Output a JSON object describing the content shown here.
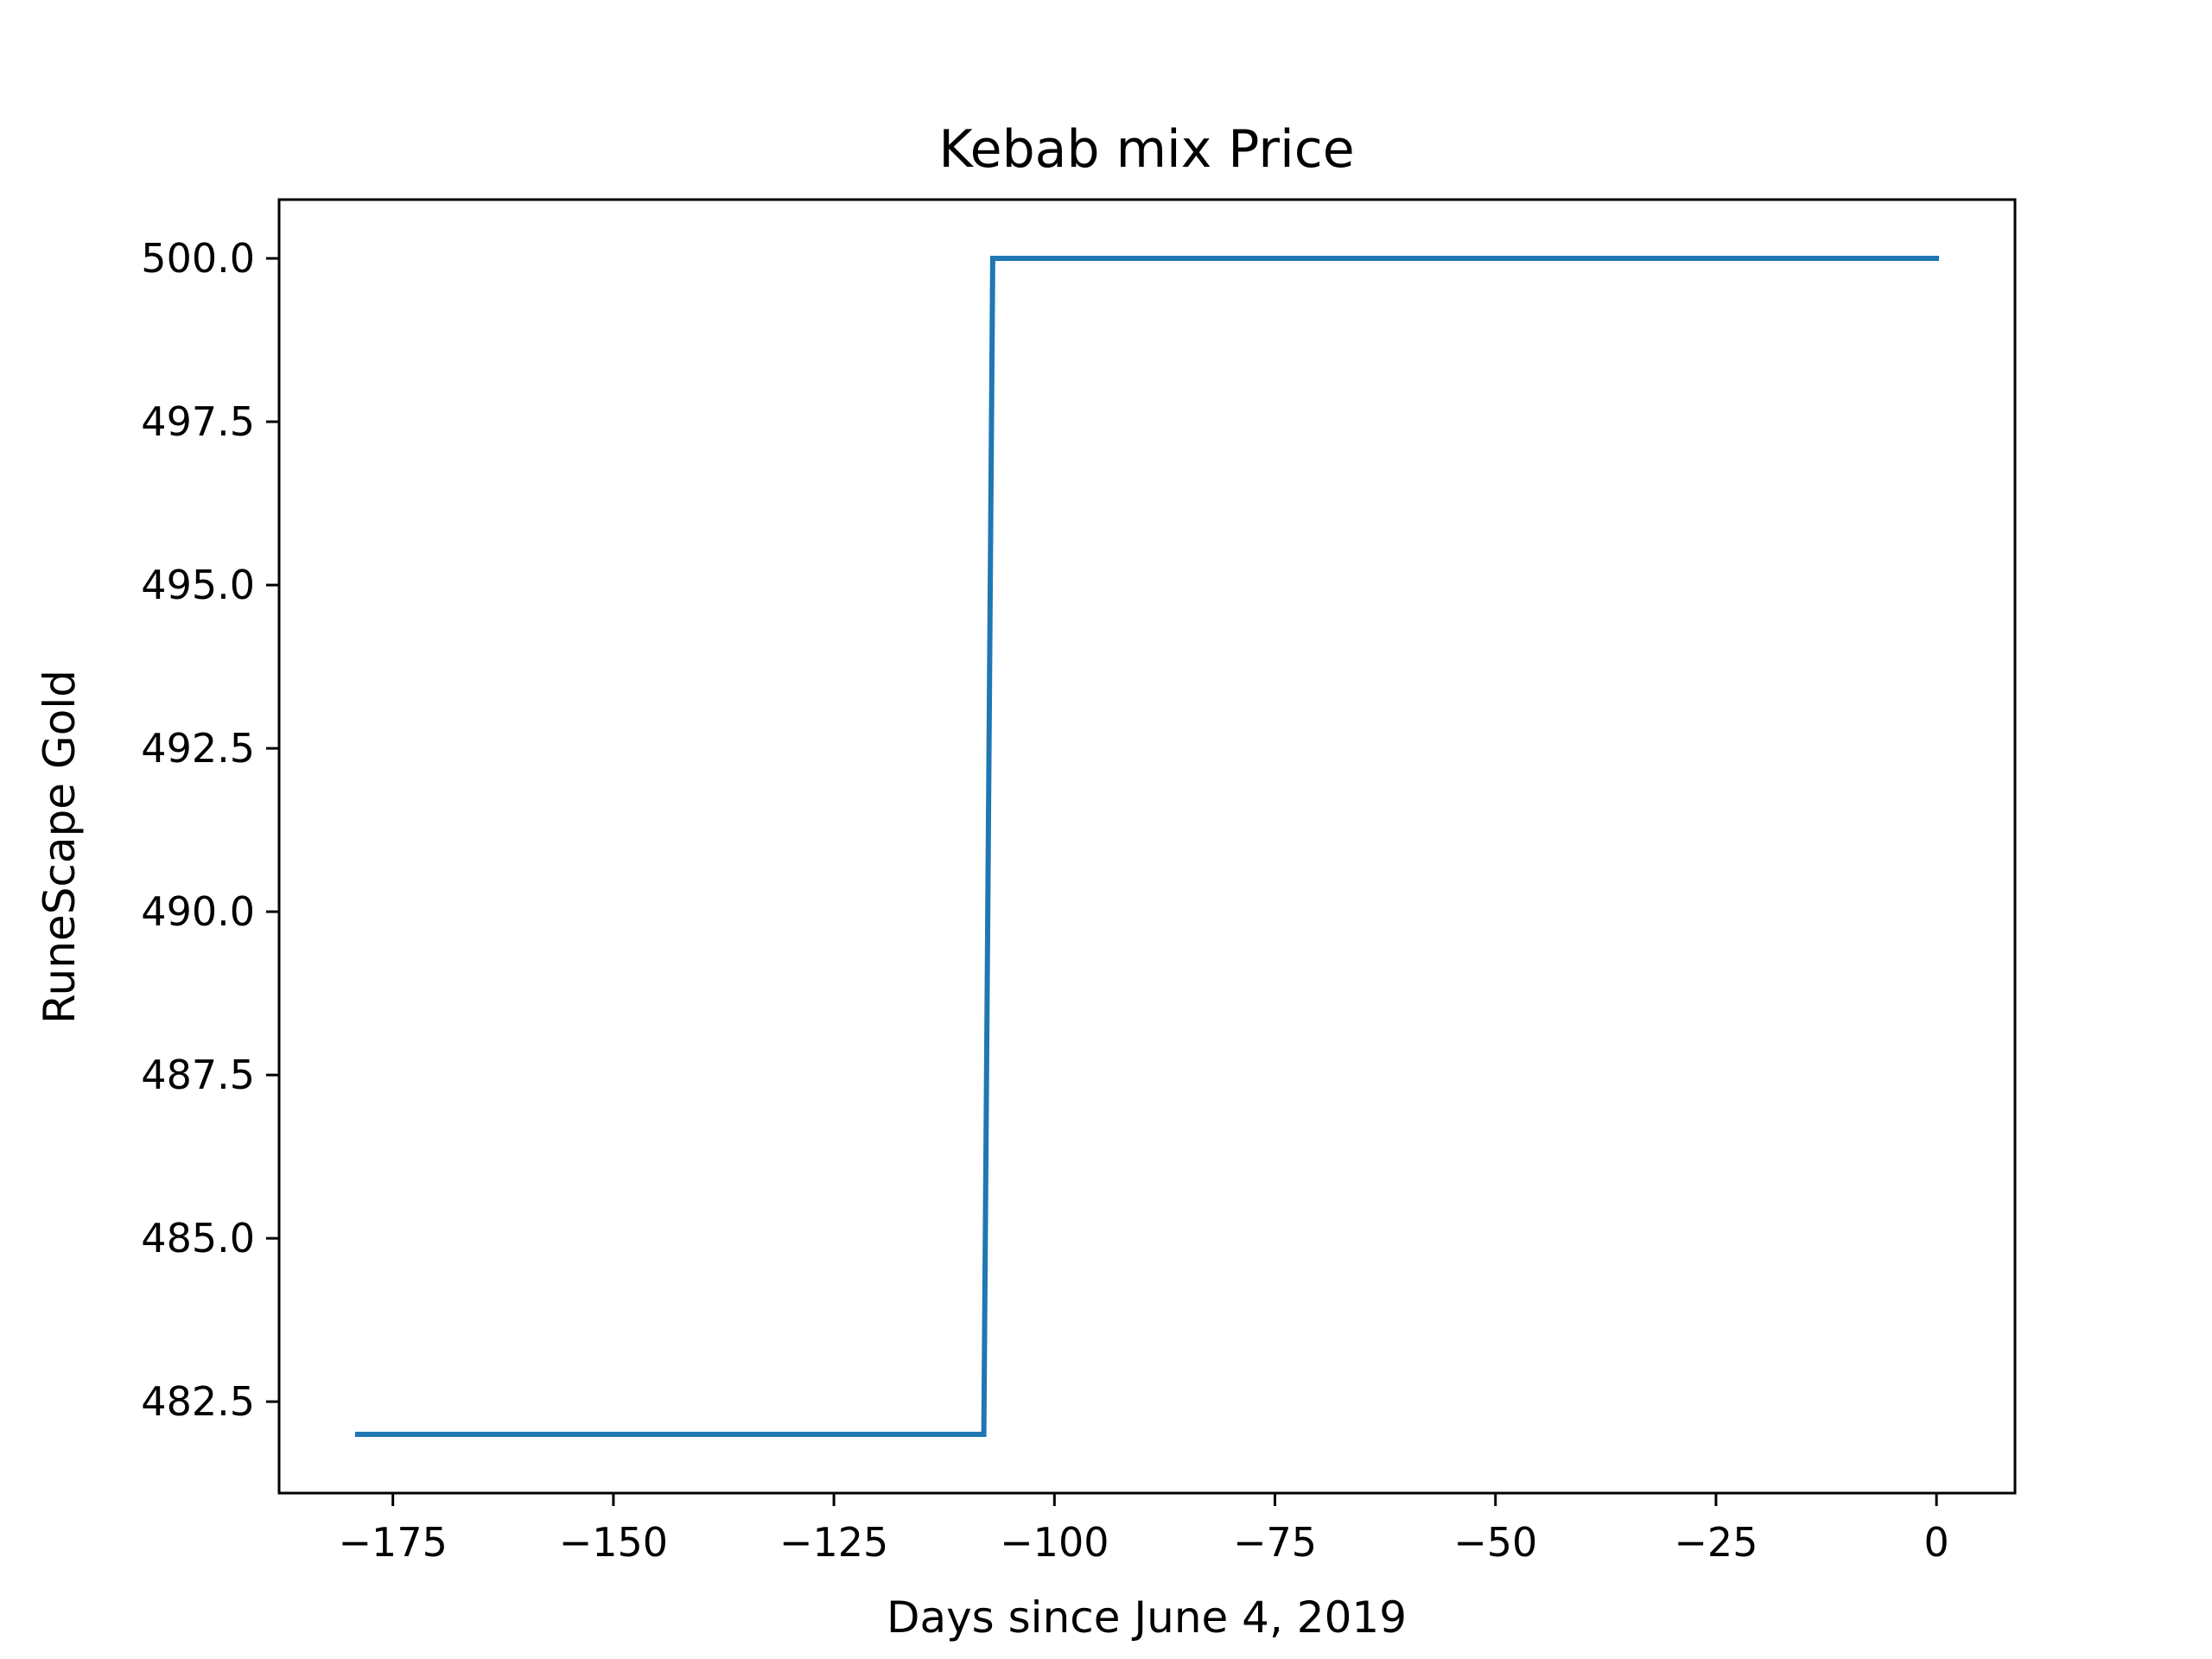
{
  "chart_data": {
    "type": "line",
    "title": "Kebab mix Price",
    "xlabel": "Days since June 4, 2019",
    "ylabel": "RuneScape Gold",
    "xlim": [
      -187.9,
      8.9
    ],
    "ylim": [
      481.1,
      500.9
    ],
    "xticks": [
      -175,
      -150,
      -125,
      -100,
      -75,
      -50,
      -25,
      0
    ],
    "xtick_labels": [
      "−175",
      "−150",
      "−125",
      "−100",
      "−75",
      "−50",
      "−25",
      "0"
    ],
    "yticks": [
      482.5,
      485.0,
      487.5,
      490.0,
      492.5,
      495.0,
      497.5,
      500.0
    ],
    "ytick_labels": [
      "482.5",
      "485.0",
      "487.5",
      "490.0",
      "492.5",
      "495.0",
      "497.5",
      "500.0"
    ],
    "grid": false,
    "series": [
      {
        "color": "#1f77b4",
        "x": [
          -179,
          -108,
          -107,
          0
        ],
        "y": [
          482,
          482,
          500,
          500
        ]
      }
    ]
  }
}
